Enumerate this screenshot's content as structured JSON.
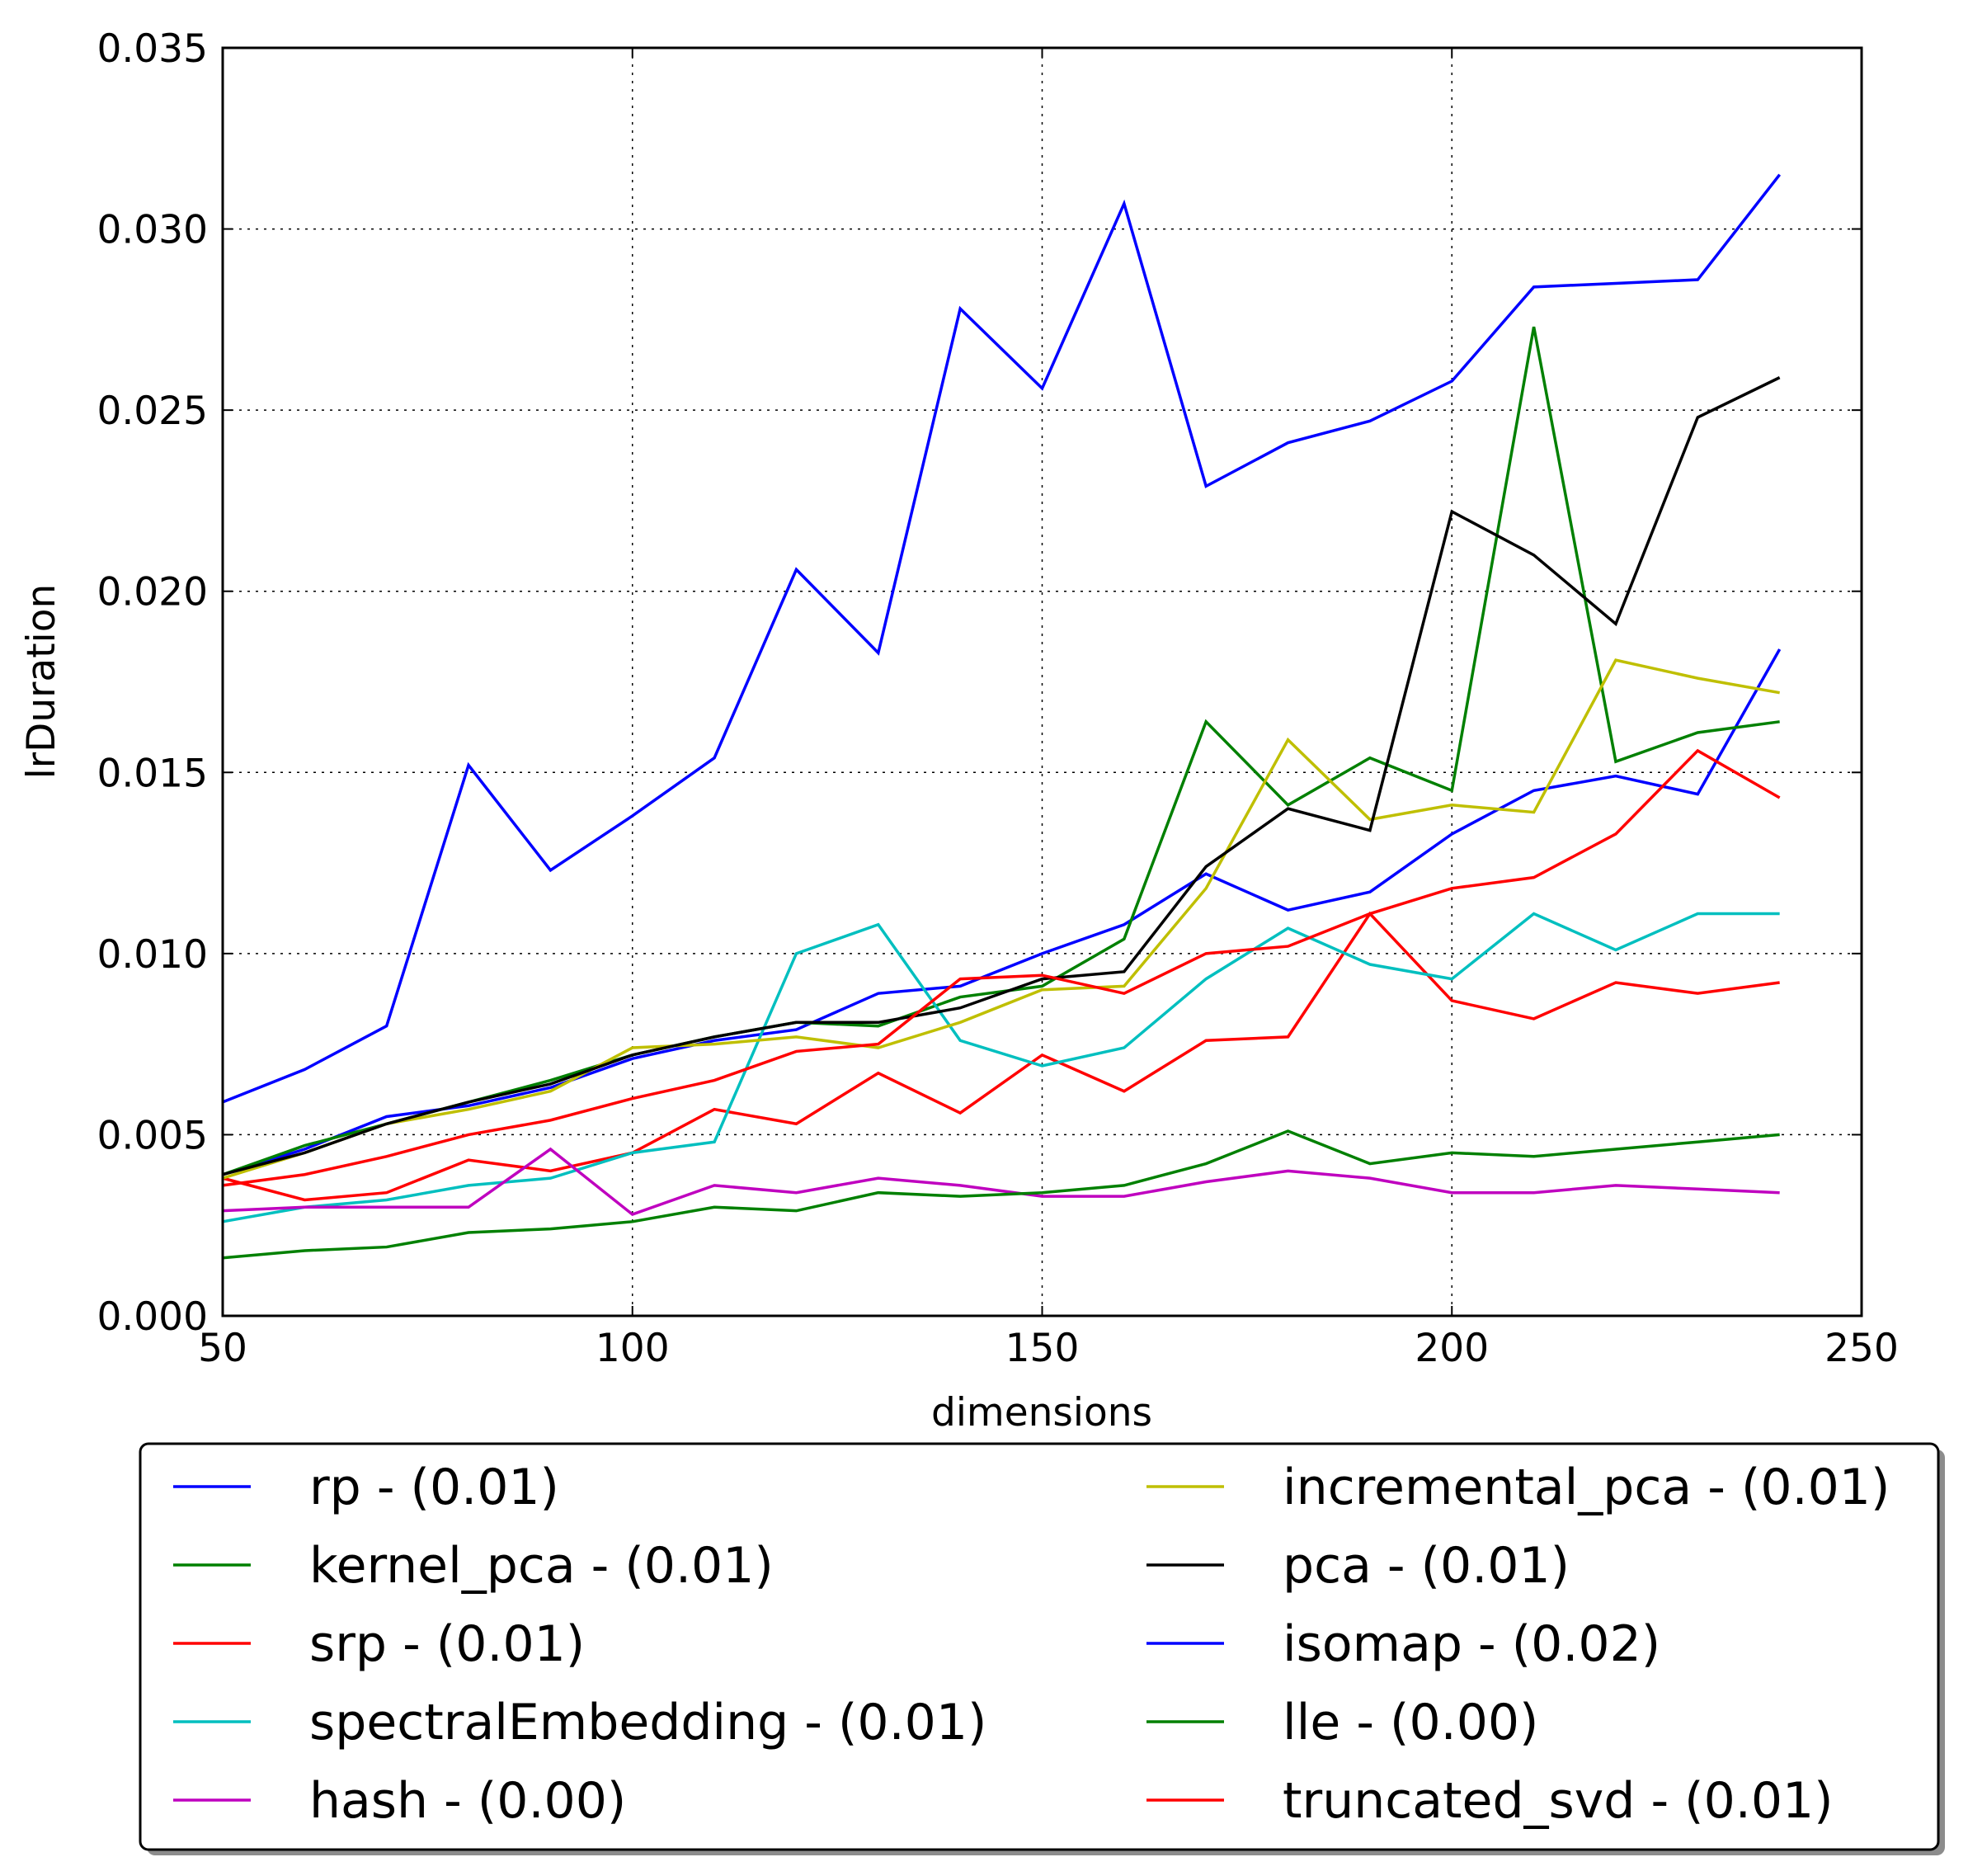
{
  "chart_data": {
    "type": "line",
    "xlabel": "dimensions",
    "ylabel": "lrDuration",
    "xlim": [
      50,
      250
    ],
    "ylim": [
      0.0,
      0.035
    ],
    "xticks": [
      "50",
      "100",
      "150",
      "200",
      "250"
    ],
    "yticks": [
      "0.000",
      "0.005",
      "0.010",
      "0.015",
      "0.020",
      "0.025",
      "0.030",
      "0.035"
    ],
    "grid": true,
    "legend_position": "below plot, two columns",
    "x": [
      50,
      60,
      70,
      80,
      90,
      100,
      110,
      120,
      130,
      140,
      150,
      160,
      170,
      180,
      190,
      200,
      210,
      220,
      230,
      240
    ],
    "series": [
      {
        "name": "rp - (0.01)",
        "color": "#0000ff",
        "values": [
          0.0039,
          0.0046,
          0.0055,
          0.0058,
          0.0063,
          0.0071,
          0.0076,
          0.0079,
          0.0089,
          0.0091,
          0.01,
          0.0108,
          0.0122,
          0.0112,
          0.0117,
          0.0133,
          0.0145,
          0.0149,
          0.0144,
          0.0184
        ]
      },
      {
        "name": "kernel_pca - (0.01)",
        "color": "#008000",
        "values": [
          0.0039,
          0.0047,
          0.0053,
          0.0059,
          0.0065,
          0.0072,
          0.0077,
          0.0081,
          0.008,
          0.0088,
          0.0091,
          0.0104,
          0.0164,
          0.0141,
          0.0154,
          0.0145,
          0.0273,
          0.0153,
          0.0161,
          0.0164
        ]
      },
      {
        "name": "srp - (0.01)",
        "color": "#ff0000",
        "values": [
          0.0038,
          0.0032,
          0.0034,
          0.0043,
          0.004,
          0.0045,
          0.0057,
          0.0053,
          0.0067,
          0.0056,
          0.0072,
          0.0062,
          0.0076,
          0.0077,
          0.0111,
          0.0087,
          0.0082,
          0.0092,
          0.0089,
          0.0092
        ]
      },
      {
        "name": "spectralEmbedding - (0.01)",
        "color": "#00bfbf",
        "values": [
          0.0026,
          0.003,
          0.0032,
          0.0036,
          0.0038,
          0.0045,
          0.0048,
          0.01,
          0.0108,
          0.0076,
          0.0069,
          0.0074,
          0.0093,
          0.0107,
          0.0097,
          0.0093,
          0.0111,
          0.0101,
          0.0111,
          0.0111
        ]
      },
      {
        "name": "hash - (0.00)",
        "color": "#bf00bf",
        "values": [
          0.0029,
          0.003,
          0.003,
          0.003,
          0.0046,
          0.0028,
          0.0036,
          0.0034,
          0.0038,
          0.0036,
          0.0033,
          0.0033,
          0.0037,
          0.004,
          0.0038,
          0.0034,
          0.0034,
          0.0036,
          0.0035,
          0.0034
        ]
      },
      {
        "name": "incremental_pca - (0.01)",
        "color": "#bfbf00",
        "values": [
          0.0038,
          0.0045,
          0.0053,
          0.0057,
          0.0062,
          0.0074,
          0.0075,
          0.0077,
          0.0074,
          0.0081,
          0.009,
          0.0091,
          0.0118,
          0.0159,
          0.0137,
          0.0141,
          0.0139,
          0.0181,
          0.0176,
          0.0172
        ]
      },
      {
        "name": "pca - (0.01)",
        "color": "#000000",
        "values": [
          0.0039,
          0.0045,
          0.0053,
          0.0059,
          0.0064,
          0.0072,
          0.0077,
          0.0081,
          0.0081,
          0.0085,
          0.0093,
          0.0095,
          0.0124,
          0.014,
          0.0134,
          0.0222,
          0.021,
          0.0191,
          0.0248,
          0.0259
        ]
      },
      {
        "name": "isomap - (0.02)",
        "color": "#0000ff",
        "values": [
          0.0059,
          0.0068,
          0.008,
          0.0152,
          0.0123,
          0.0138,
          0.0154,
          0.0206,
          0.0183,
          0.0278,
          0.0256,
          0.0307,
          0.0229,
          0.0241,
          0.0247,
          0.0258,
          0.0284,
          0.0285,
          0.0286,
          0.0315
        ]
      },
      {
        "name": "lle - (0.00)",
        "color": "#008000",
        "values": [
          0.0016,
          0.0018,
          0.0019,
          0.0023,
          0.0024,
          0.0026,
          0.003,
          0.0029,
          0.0034,
          0.0033,
          0.0034,
          0.0036,
          0.0042,
          0.0051,
          0.0042,
          0.0045,
          0.0044,
          0.0046,
          0.0048,
          0.005
        ]
      },
      {
        "name": "truncated_svd - (0.01)",
        "color": "#ff0000",
        "values": [
          0.0036,
          0.0039,
          0.0044,
          0.005,
          0.0054,
          0.006,
          0.0065,
          0.0073,
          0.0075,
          0.0093,
          0.0094,
          0.0089,
          0.01,
          0.0102,
          0.0111,
          0.0118,
          0.0121,
          0.0133,
          0.0156,
          0.0143
        ]
      }
    ]
  }
}
